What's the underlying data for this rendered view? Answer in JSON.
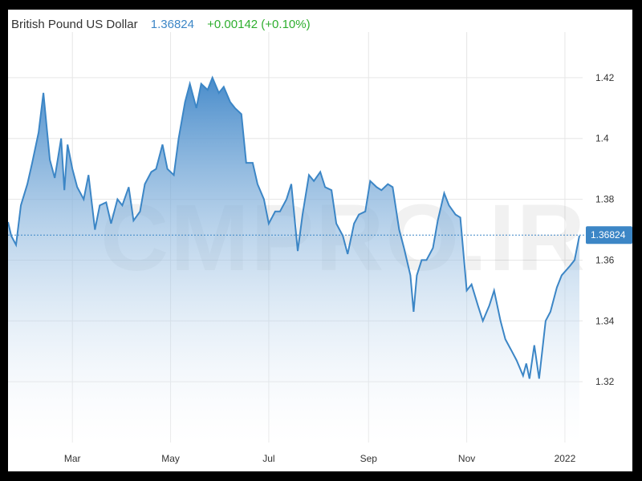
{
  "header": {
    "instrument": "British Pound US Dollar",
    "price": "1.36824",
    "change": "+0.00142 (+0.10%)"
  },
  "watermark": "CMPRO.IR",
  "colors": {
    "line": "#3c86c6",
    "area_top": "#3f86c8",
    "area_bottom": "#ffffff",
    "change_positive": "#2eae2e",
    "grid": "#e6e6e6",
    "last_price_bg": "#3c86c6"
  },
  "chart_data": {
    "type": "area",
    "x_axis_labels": [
      "Mar",
      "May",
      "Jul",
      "Sep",
      "Nov",
      "2022"
    ],
    "x_axis_label_dates": [
      "2021-03-01",
      "2021-05-01",
      "2021-07-01",
      "2021-09-01",
      "2021-11-01",
      "2022-01-01"
    ],
    "y_ticks": [
      1.42,
      1.4,
      1.38,
      1.36,
      1.34,
      1.32
    ],
    "ylim": [
      1.3,
      1.435
    ],
    "xlim": [
      "2021-01-20",
      "2022-01-12"
    ],
    "grid": true,
    "last_value": 1.36824,
    "series": [
      {
        "x": [
          "2021-01-20",
          "2021-01-22",
          "2021-01-25",
          "2021-01-28",
          "2021-02-01",
          "2021-02-04",
          "2021-02-08",
          "2021-02-11",
          "2021-02-15",
          "2021-02-18",
          "2021-02-22",
          "2021-02-24",
          "2021-02-26",
          "2021-03-01",
          "2021-03-04",
          "2021-03-08",
          "2021-03-11",
          "2021-03-15",
          "2021-03-18",
          "2021-03-22",
          "2021-03-25",
          "2021-03-29",
          "2021-04-01",
          "2021-04-05",
          "2021-04-08",
          "2021-04-12",
          "2021-04-15",
          "2021-04-19",
          "2021-04-22",
          "2021-04-26",
          "2021-04-29",
          "2021-05-03",
          "2021-05-06",
          "2021-05-10",
          "2021-05-13",
          "2021-05-17",
          "2021-05-20",
          "2021-05-24",
          "2021-05-27",
          "2021-05-31",
          "2021-06-03",
          "2021-06-07",
          "2021-06-10",
          "2021-06-14",
          "2021-06-17",
          "2021-06-21",
          "2021-06-24",
          "2021-06-28",
          "2021-07-01",
          "2021-07-05",
          "2021-07-08",
          "2021-07-12",
          "2021-07-15",
          "2021-07-19",
          "2021-07-22",
          "2021-07-26",
          "2021-07-29",
          "2021-08-02",
          "2021-08-05",
          "2021-08-09",
          "2021-08-12",
          "2021-08-16",
          "2021-08-19",
          "2021-08-23",
          "2021-08-26",
          "2021-08-30",
          "2021-09-02",
          "2021-09-06",
          "2021-09-09",
          "2021-09-13",
          "2021-09-16",
          "2021-09-20",
          "2021-09-23",
          "2021-09-27",
          "2021-09-29",
          "2021-10-01",
          "2021-10-04",
          "2021-10-07",
          "2021-10-11",
          "2021-10-14",
          "2021-10-18",
          "2021-10-21",
          "2021-10-25",
          "2021-10-28",
          "2021-11-01",
          "2021-11-04",
          "2021-11-08",
          "2021-11-11",
          "2021-11-15",
          "2021-11-18",
          "2021-11-22",
          "2021-11-25",
          "2021-11-29",
          "2021-12-02",
          "2021-12-06",
          "2021-12-08",
          "2021-12-10",
          "2021-12-13",
          "2021-12-16",
          "2021-12-20",
          "2021-12-23",
          "2021-12-27",
          "2021-12-30",
          "2022-01-04",
          "2022-01-07",
          "2022-01-10"
        ],
        "y": [
          1.3725,
          1.368,
          1.365,
          1.378,
          1.385,
          1.392,
          1.402,
          1.415,
          1.393,
          1.387,
          1.4,
          1.383,
          1.398,
          1.39,
          1.384,
          1.38,
          1.388,
          1.37,
          1.378,
          1.379,
          1.372,
          1.38,
          1.378,
          1.384,
          1.373,
          1.376,
          1.385,
          1.389,
          1.39,
          1.398,
          1.39,
          1.388,
          1.4,
          1.412,
          1.418,
          1.41,
          1.418,
          1.416,
          1.42,
          1.415,
          1.417,
          1.412,
          1.41,
          1.408,
          1.392,
          1.392,
          1.385,
          1.38,
          1.372,
          1.376,
          1.376,
          1.38,
          1.385,
          1.363,
          1.375,
          1.388,
          1.386,
          1.389,
          1.384,
          1.383,
          1.372,
          1.368,
          1.362,
          1.372,
          1.375,
          1.376,
          1.386,
          1.384,
          1.383,
          1.385,
          1.384,
          1.37,
          1.364,
          1.355,
          1.343,
          1.355,
          1.36,
          1.36,
          1.364,
          1.373,
          1.382,
          1.378,
          1.375,
          1.374,
          1.35,
          1.352,
          1.345,
          1.34,
          1.345,
          1.35,
          1.34,
          1.334,
          1.33,
          1.327,
          1.322,
          1.326,
          1.321,
          1.332,
          1.321,
          1.34,
          1.343,
          1.351,
          1.355,
          1.358,
          1.36,
          1.368
        ]
      }
    ]
  }
}
